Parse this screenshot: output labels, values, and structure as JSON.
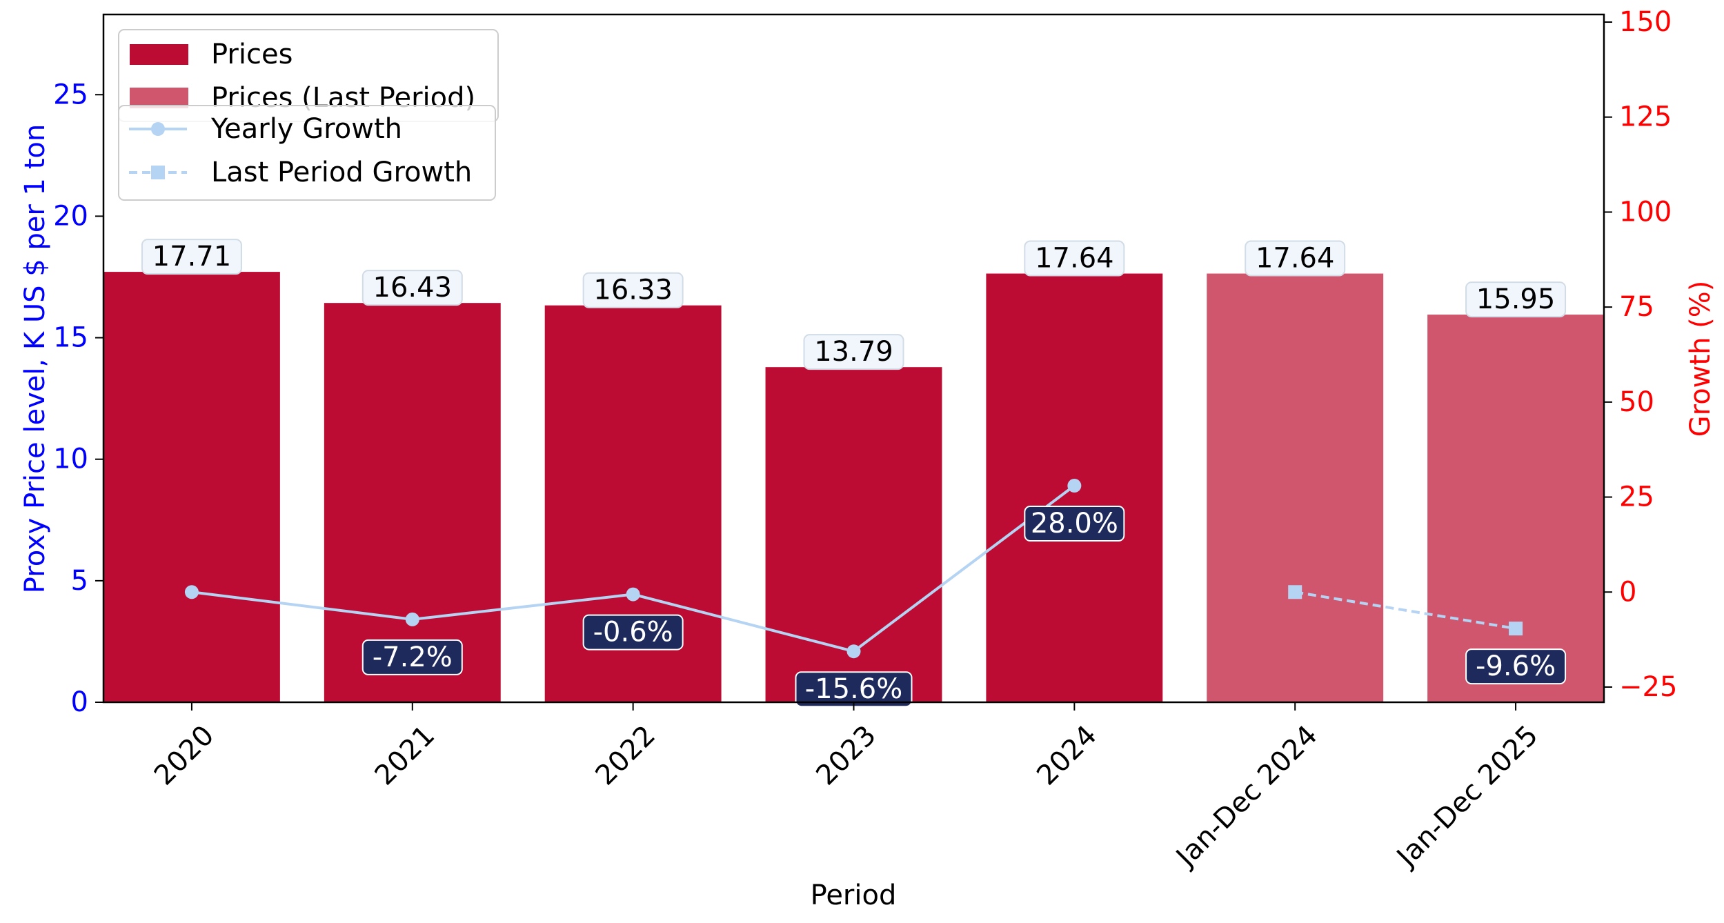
{
  "chart_data": {
    "type": "bar",
    "xlabel": "Period",
    "ylabel": "Proxy Price level, K US $ per 1 ton",
    "ylabel_right": "Growth (%)",
    "categories": [
      "2020",
      "2021",
      "2022",
      "2023",
      "2024",
      "Jan-Dec 2024",
      "Jan-Dec 2025"
    ],
    "ylim": [
      0,
      28.3
    ],
    "ylim_right": [
      -29,
      152
    ],
    "yticks": [
      0,
      5,
      10,
      15,
      20,
      25
    ],
    "yticks_right": [
      -25,
      0,
      25,
      50,
      75,
      100,
      125,
      150
    ],
    "yticklabels_right": [
      "−25",
      "0",
      "25",
      "50",
      "75",
      "100",
      "125",
      "150"
    ],
    "bar_series": [
      {
        "name": "Prices",
        "color": "#BC0C33",
        "indices": [
          0,
          1,
          2,
          3,
          4
        ],
        "values": [
          17.71,
          16.43,
          16.33,
          13.79,
          17.64
        ],
        "labels": [
          "17.71",
          "16.43",
          "16.33",
          "13.79",
          "17.64"
        ]
      },
      {
        "name": "Prices (Last Period)",
        "color": "#D0566E",
        "indices": [
          5,
          6
        ],
        "values": [
          17.64,
          15.95
        ],
        "labels": [
          "17.64",
          "15.95"
        ]
      }
    ],
    "line_series": [
      {
        "name": "Yearly Growth",
        "color": "#B5D3F3",
        "style": "solid",
        "marker": "circle",
        "indices": [
          0,
          1,
          2,
          3,
          4
        ],
        "values": [
          0,
          -7.2,
          -0.6,
          -15.6,
          28.0
        ],
        "labels": [
          "",
          "-7.2%",
          "-0.6%",
          "-15.6%",
          "28.0%"
        ]
      },
      {
        "name": "Last Period Growth",
        "color": "#B5D3F3",
        "style": "dashed",
        "marker": "square",
        "indices": [
          5,
          6
        ],
        "values": [
          0,
          -9.6
        ],
        "labels": [
          "",
          "-9.6%"
        ]
      }
    ],
    "legend": {
      "placement": "top-left",
      "entries": [
        "Prices",
        "Prices (Last Period)",
        "Yearly Growth",
        "Last Period Growth"
      ]
    },
    "colors": {
      "left_axis": "#0000FF",
      "right_axis": "#FF0000",
      "bar_label_bg": "#F0F6FC",
      "growth_label_bg": "#1F2A5C"
    },
    "grid": false
  }
}
